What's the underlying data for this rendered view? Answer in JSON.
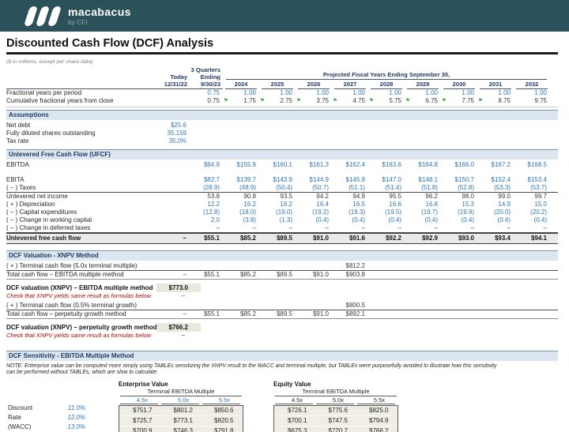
{
  "brand": {
    "name": "macabacus",
    "byline": "by CFI"
  },
  "icons": {
    "flag": "⚑"
  },
  "title": "Discounted Cash Flow (DCF) Analysis",
  "units_note": "($ in millions, except per share data)",
  "header": {
    "today_label": "Today",
    "today_date": "12/31/22",
    "quarters_line1": "3 Quarters",
    "quarters_line2": "Ending",
    "quarters_date": "9/30/23",
    "projected_label": "Projected Fiscal Years Ending September 30,",
    "years": [
      "2024",
      "2025",
      "2026",
      "2027",
      "2028",
      "2029",
      "2030",
      "2031",
      "2032"
    ]
  },
  "timing_rows": [
    {
      "label": "Fractional years per period",
      "vcls": "blue",
      "values": [
        "",
        "0.75",
        "1.00",
        "1.00",
        "1.00",
        "1.00",
        "1.00",
        "1.00",
        "1.00",
        "1.00",
        "1.00"
      ]
    },
    {
      "label": "Cumulative fractional years from close",
      "vcls": "dark",
      "flags": [
        2,
        3,
        4,
        5,
        6,
        7,
        8,
        9
      ],
      "values": [
        "",
        "0.75",
        "1.75",
        "2.75",
        "3.75",
        "4.75",
        "5.75",
        "6.75",
        "7.75",
        "8.75",
        "9.75"
      ]
    }
  ],
  "assumptions": {
    "header": "Assumptions",
    "rows": [
      {
        "label": "Net debt",
        "vcls": "blue",
        "values": [
          "$25.6",
          "",
          "",
          "",
          "",
          "",
          "",
          "",
          "",
          "",
          ""
        ]
      },
      {
        "label": "Fully diluted shares outstanding",
        "vcls": "blue",
        "values": [
          "35.159",
          "",
          "",
          "",
          "",
          "",
          "",
          "",
          "",
          "",
          ""
        ]
      },
      {
        "label": "Tax rate",
        "vcls": "blue italic",
        "values": [
          "35.0%",
          "",
          "",
          "",
          "",
          "",
          "",
          "",
          "",
          "",
          ""
        ]
      }
    ]
  },
  "ufcf": {
    "header": "Unlevered Free Cash Flow (UFCF)",
    "rows": [
      {
        "label": "EBITDA",
        "vcls": "blue",
        "values": [
          "",
          "$94.9",
          "$155.9",
          "$160.1",
          "$161.3",
          "$162.4",
          "$163.6",
          "$164.8",
          "$166.0",
          "$167.2",
          "$168.5"
        ]
      },
      {
        "cls": "spacer"
      },
      {
        "label": "EBITA",
        "vcls": "blue",
        "values": [
          "",
          "$82.7",
          "$139.7",
          "$143.9",
          "$144.9",
          "$145.9",
          "$147.0",
          "$148.1",
          "$150.7",
          "$152.4",
          "$153.4"
        ]
      },
      {
        "label": "( – ) Taxes",
        "vcls": "blue",
        "cls": "rule-under",
        "values": [
          "",
          "(28.9)",
          "(48.9)",
          "(50.4)",
          "(50.7)",
          "(51.1)",
          "(51.4)",
          "(51.8)",
          "(52.8)",
          "(53.3)",
          "(53.7)"
        ]
      },
      {
        "label": "Unlevered net income",
        "vcls": "dark",
        "values": [
          "",
          "53.8",
          "90.8",
          "93.5",
          "94.2",
          "94.9",
          "95.5",
          "96.2",
          "98.0",
          "99.0",
          "99.7"
        ]
      },
      {
        "label": "( + ) Depreciation",
        "vcls": "blue",
        "values": [
          "",
          "12.2",
          "16.2",
          "16.2",
          "16.4",
          "16.5",
          "16.6",
          "16.8",
          "15.3",
          "14.9",
          "15.0"
        ]
      },
      {
        "label": "( – ) Capital expenditures",
        "vcls": "blue",
        "values": [
          "",
          "(12.8)",
          "(18.0)",
          "(19.0)",
          "(19.2)",
          "(19.3)",
          "(19.5)",
          "(19.7)",
          "(19.9)",
          "(20.0)",
          "(20.2)"
        ]
      },
      {
        "label": "( – ) Change in working capital",
        "vcls": "blue",
        "values": [
          "",
          "2.0",
          "(3.8)",
          "(1.3)",
          "(0.4)",
          "(0.4)",
          "(0.4)",
          "(0.4)",
          "(0.4)",
          "(0.4)",
          "(0.4)"
        ]
      },
      {
        "label": "( – ) Change in deferred taxes",
        "vcls": "dark",
        "cls": "rule-under",
        "values": [
          "",
          "–",
          "–",
          "–",
          "–",
          "–",
          "–",
          "–",
          "–",
          "–",
          "–"
        ]
      },
      {
        "label": "Unlevered free cash flow",
        "cls": "total-row",
        "values": [
          "–",
          "$55.1",
          "$85.2",
          "$89.5",
          "$91.0",
          "$91.6",
          "$92.2",
          "$92.9",
          "$93.0",
          "$93.4",
          "$94.1"
        ]
      }
    ]
  },
  "xnpv": {
    "header": "DCF Valuation - XNPV Method",
    "multiple_rows": [
      {
        "label": "( + ) Terminal cash flow (5.0x terminal multiple)",
        "vcls": "dark",
        "cls": "rule-under",
        "values": [
          "",
          "",
          "",
          "",
          "",
          "$812.2",
          "",
          "",
          "",
          "",
          ""
        ]
      },
      {
        "label": "Total cash flow – EBITDA multiple method",
        "vcls": "dark",
        "cls": "rule-gray",
        "values": [
          "–",
          "$55.1",
          "$85.2",
          "$89.5",
          "$91.0",
          "$903.8",
          "",
          "",
          "",
          "",
          ""
        ]
      }
    ],
    "multiple_result_label": "DCF valuation (XNPV) – EBITDA multiple method",
    "multiple_result_value": "$773.0",
    "multiple_check_text": "Check that XNPV yields same result as formulas below",
    "multiple_check_value": "–",
    "growth_rows": [
      {
        "label": "( + ) Terminal cash flow (0.5% terminal growth)",
        "vcls": "dark",
        "cls": "rule-under",
        "values": [
          "",
          "",
          "",
          "",
          "",
          "$800.5",
          "",
          "",
          "",
          "",
          ""
        ]
      },
      {
        "label": "Total cash flow – perpetuity growth method",
        "vcls": "dark",
        "cls": "rule-gray",
        "values": [
          "–",
          "$55.1",
          "$85.2",
          "$89.5",
          "$91.0",
          "$892.1",
          "",
          "",
          "",
          "",
          ""
        ]
      }
    ],
    "growth_result_label": "DCF valuation (XNPV) – perpetuity growth method",
    "growth_result_value": "$766.2",
    "growth_check_text": "Check that XNPV yields same result as formulas below",
    "growth_check_value": "–"
  },
  "sensitivity": {
    "header": "DCF Sensitivity - EBITDA Multiple Method",
    "note_line1": "NOTE:  Enterprise value can be computed more simply using TABLEs sensitizing the XNPV result to the WACC and terminal multiple, but TABLEs were purposefully avoided to illustrate how this sensitivity",
    "note_line2": "can be performed without TABLEs, which are slow to calculate.",
    "axis_labels": [
      "Discount",
      "Rate",
      "(WACC)"
    ],
    "wacc_values": [
      "11.0%",
      "12.0%",
      "13.0%"
    ],
    "tables": [
      {
        "title": "Enterprise Value",
        "subtitle": "Terminal EBITDA Multiple",
        "cols": [
          "4.5x",
          "5.0x",
          "5.5x"
        ],
        "rows": [
          [
            "$751.7",
            "$801.2",
            "$850.6"
          ],
          [
            "$725.7",
            "$773.1",
            "$820.5"
          ],
          [
            "$700.9",
            "$746.3",
            "$791.8"
          ]
        ]
      },
      {
        "title": "Equity Value",
        "subtitle": "Terminal EBITDA Multiple",
        "cols": [
          "4.5x",
          "5.0x",
          "5.5x"
        ],
        "rows": [
          [
            "$726.1",
            "$775.6",
            "$825.0"
          ],
          [
            "$700.1",
            "$747.5",
            "$794.9"
          ],
          [
            "$675.3",
            "$720.7",
            "$766.2"
          ]
        ]
      }
    ]
  }
}
